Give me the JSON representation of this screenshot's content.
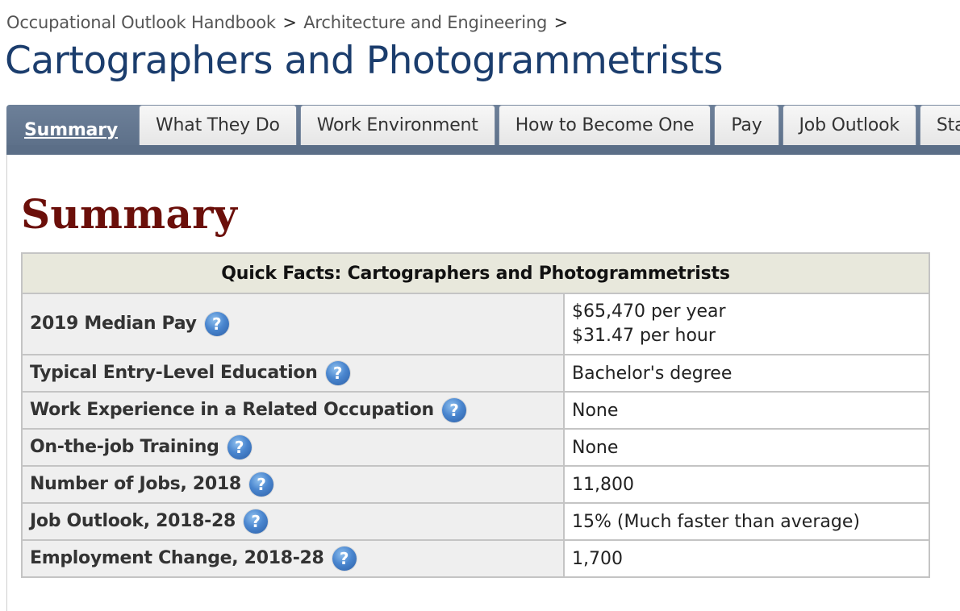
{
  "breadcrumb": {
    "items": [
      "Occupational Outlook Handbook",
      "Architecture and Engineering"
    ],
    "separator": ">"
  },
  "page_title": "Cartographers and Photogrammetrists",
  "tabs": [
    "Summary",
    "What They Do",
    "Work Environment",
    "How to Become One",
    "Pay",
    "Job Outlook",
    "Sta"
  ],
  "section_title": "Summary",
  "quick_facts": {
    "header": "Quick Facts: Cartographers and Photogrammetrists",
    "rows": [
      {
        "label": "2019 Median Pay",
        "value": "$65,470 per year",
        "value2": "$31.47 per hour"
      },
      {
        "label": "Typical Entry-Level Education",
        "value": "Bachelor's degree"
      },
      {
        "label": "Work Experience in a Related Occupation",
        "value": "None"
      },
      {
        "label": "On-the-job Training",
        "value": "None"
      },
      {
        "label": "Number of Jobs, 2018",
        "value": "11,800"
      },
      {
        "label": "Job Outlook, 2018-28",
        "value": "15% (Much faster than average)"
      },
      {
        "label": "Employment Change, 2018-28",
        "value": "1,700"
      }
    ],
    "help_icon": "?"
  },
  "colors": {
    "title": "#1b3d6d",
    "section_title": "#6b0f0a",
    "tab_bar": "#5a6d86",
    "table_header": "#e8e8dc",
    "help_icon": "#4a86cf"
  }
}
